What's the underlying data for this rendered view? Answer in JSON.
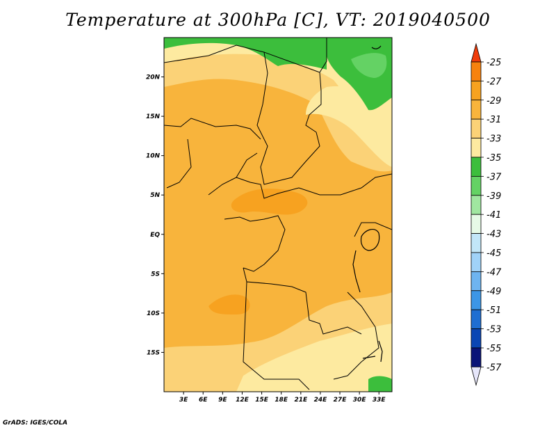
{
  "title": "Temperature at 300hPa [C], VT: 2019040500",
  "credit": "GrADS: IGES/COLA",
  "map": {
    "lon_range": [
      0,
      35
    ],
    "lat_range": [
      -20,
      25
    ],
    "lat_ticks": [
      {
        "value": 20,
        "label": "20N"
      },
      {
        "value": 15,
        "label": "15N"
      },
      {
        "value": 10,
        "label": "10N"
      },
      {
        "value": 5,
        "label": "5N"
      },
      {
        "value": 0,
        "label": "EQ"
      },
      {
        "value": -5,
        "label": "5S"
      },
      {
        "value": -10,
        "label": "10S"
      },
      {
        "value": -15,
        "label": "15S"
      }
    ],
    "lon_ticks": [
      {
        "value": 3,
        "label": "3E"
      },
      {
        "value": 6,
        "label": "6E"
      },
      {
        "value": 9,
        "label": "9E"
      },
      {
        "value": 12,
        "label": "12E"
      },
      {
        "value": 15,
        "label": "15E"
      },
      {
        "value": 18,
        "label": "18E"
      },
      {
        "value": 21,
        "label": "21E"
      },
      {
        "value": 24,
        "label": "24E"
      },
      {
        "value": 27,
        "label": "27E"
      },
      {
        "value": 30,
        "label": "30E"
      },
      {
        "value": 33,
        "label": "33E"
      }
    ]
  },
  "colorbar": {
    "levels": [
      {
        "label": "-25",
        "color": "#f05a0a"
      },
      {
        "label": "-27",
        "color": "#f7820e"
      },
      {
        "label": "-29",
        "color": "#f7a220"
      },
      {
        "label": "-31",
        "color": "#f8b43c"
      },
      {
        "label": "-33",
        "color": "#fbd277"
      },
      {
        "label": "-35",
        "color": "#fdeaa0"
      },
      {
        "label": "-37",
        "color": "#3cbe3c"
      },
      {
        "label": "-39",
        "color": "#64d264"
      },
      {
        "label": "-41",
        "color": "#a0e6a0"
      },
      {
        "label": "-43",
        "color": "#e6fae6"
      },
      {
        "label": "-45",
        "color": "#c2e6f8"
      },
      {
        "label": "-47",
        "color": "#a0d2f8"
      },
      {
        "label": "-49",
        "color": "#6eb4f0"
      },
      {
        "label": "-51",
        "color": "#3c96e6"
      },
      {
        "label": "-53",
        "color": "#1e6ed2"
      },
      {
        "label": "-55",
        "color": "#0a46b4"
      },
      {
        "label": "-57",
        "color": "#0a1478"
      }
    ],
    "top_arrow_color": "#f03c0a",
    "bottom_arrow_color": "#e6e6fa"
  }
}
